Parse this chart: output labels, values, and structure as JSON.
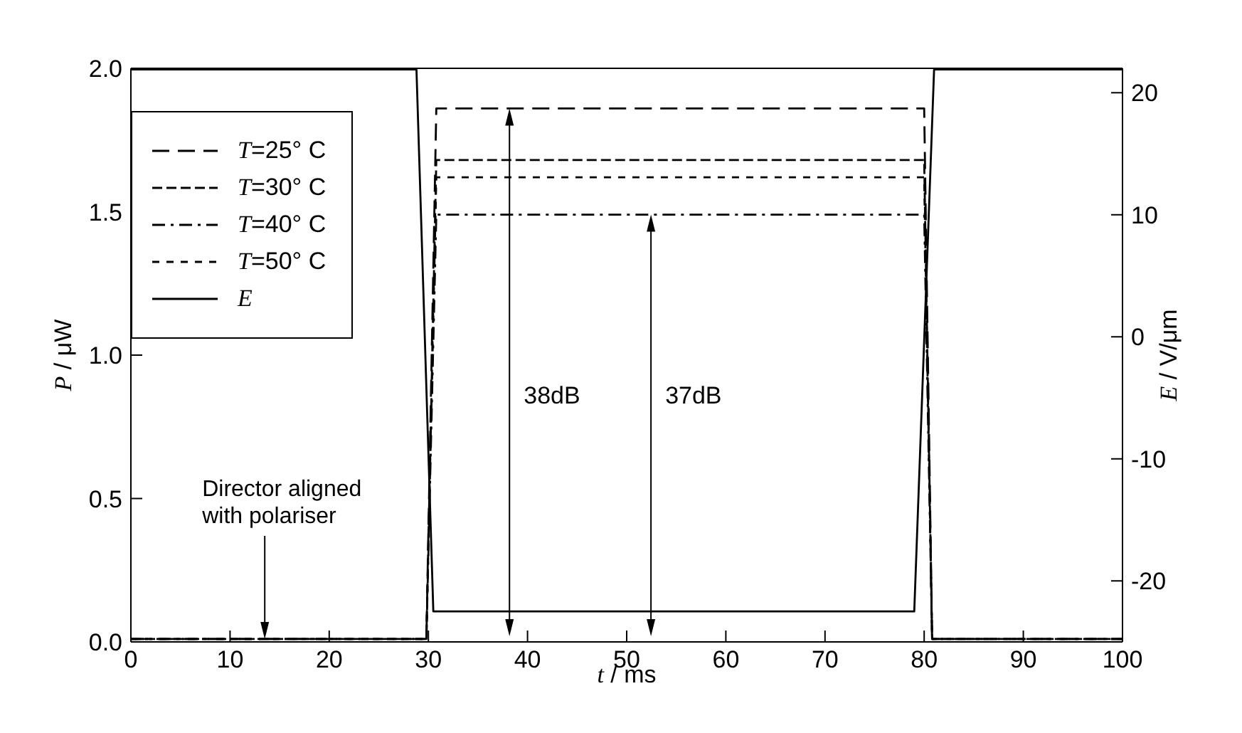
{
  "chart_data": {
    "type": "line",
    "xlabel": "t / ms",
    "ylabel": "P / μW",
    "y2label": "E / V/μm",
    "xlim": [
      0,
      100
    ],
    "xticks": [
      0,
      10,
      20,
      30,
      40,
      50,
      60,
      70,
      80,
      90,
      100
    ],
    "ylim": [
      0,
      2.0
    ],
    "yticks": [
      {
        "value": 0,
        "label": "0.0"
      },
      {
        "value": 0.5,
        "label": "0.5"
      },
      {
        "value": 1,
        "label": "1.0"
      },
      {
        "value": 1.5,
        "label": "1.5"
      },
      {
        "value": 2,
        "label": "2.0"
      }
    ],
    "y2lim": [
      -25,
      22
    ],
    "y2ticks": [
      -20,
      -10,
      0,
      10,
      20
    ],
    "legend": "top left",
    "grid": false,
    "marker": "none",
    "series": [
      {
        "name": "T=25° C",
        "color": "#000000",
        "line_style": "dashed",
        "x": [
          0,
          29.8,
          30.8,
          80.0,
          80.8,
          100
        ],
        "values": [
          0.01,
          0.01,
          1.86,
          1.86,
          0.01,
          0.01
        ]
      },
      {
        "name": "T=30° C",
        "color": "#000000",
        "line_style": "dashed",
        "x": [
          0,
          29.8,
          30.8,
          80.0,
          80.8,
          100
        ],
        "values": [
          0.01,
          0.01,
          1.68,
          1.68,
          0.01,
          0.01
        ]
      },
      {
        "name": "T=40° C",
        "color": "#000000",
        "line_style": "dashdot",
        "x": [
          0,
          29.8,
          30.8,
          80.0,
          80.8,
          100
        ],
        "values": [
          0.01,
          0.01,
          1.49,
          1.49,
          0.01,
          0.01
        ]
      },
      {
        "name": "T=50° C",
        "color": "#000000",
        "line_style": "dashed",
        "x": [
          0,
          29.8,
          30.8,
          80.0,
          80.8,
          100
        ],
        "values": [
          0.01,
          0.01,
          1.62,
          1.62,
          0.01,
          0.01
        ]
      },
      {
        "name": "E",
        "color": "#000000",
        "line_style": "solid",
        "axis": "y2",
        "x": [
          0,
          28.8,
          30.5,
          79.0,
          81.0,
          100
        ],
        "values": [
          21.9,
          21.9,
          -22.5,
          -22.5,
          21.9,
          21.9
        ]
      }
    ],
    "annotations": [
      "38dB",
      "37dB",
      {
        "text": "Director aligned with polariser",
        "x": 13.5,
        "y": 0.01
      }
    ]
  }
}
